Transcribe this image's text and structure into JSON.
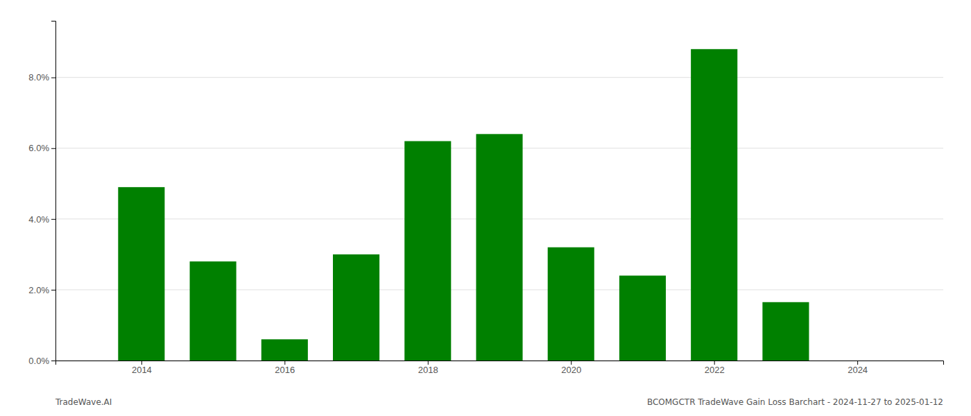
{
  "chart_data": {
    "type": "bar",
    "x": [
      2014,
      2015,
      2016,
      2017,
      2018,
      2019,
      2020,
      2021,
      2022,
      2023,
      2024
    ],
    "values": [
      0.049,
      0.028,
      0.006,
      0.03,
      0.062,
      0.064,
      0.032,
      0.024,
      0.088,
      0.0165,
      0.0
    ],
    "color": "#008000",
    "xlim": [
      2012.8,
      2025.2
    ],
    "xticks": [
      2014,
      2016,
      2018,
      2020,
      2022,
      2024
    ],
    "ylim": [
      0,
      0.096
    ],
    "yticks": [
      {
        "value": 0.0,
        "label": "0.0%"
      },
      {
        "value": 0.02,
        "label": "2.0%"
      },
      {
        "value": 0.04,
        "label": "4.0%"
      },
      {
        "value": 0.06,
        "label": "6.0%"
      },
      {
        "value": 0.08,
        "label": "8.0%"
      }
    ],
    "grid": true,
    "annotations": [
      "TradeWave.AI",
      "BCOMGCTR TradeWave Gain Loss Barchart - 2024-11-27 to 2025-01-12"
    ]
  }
}
